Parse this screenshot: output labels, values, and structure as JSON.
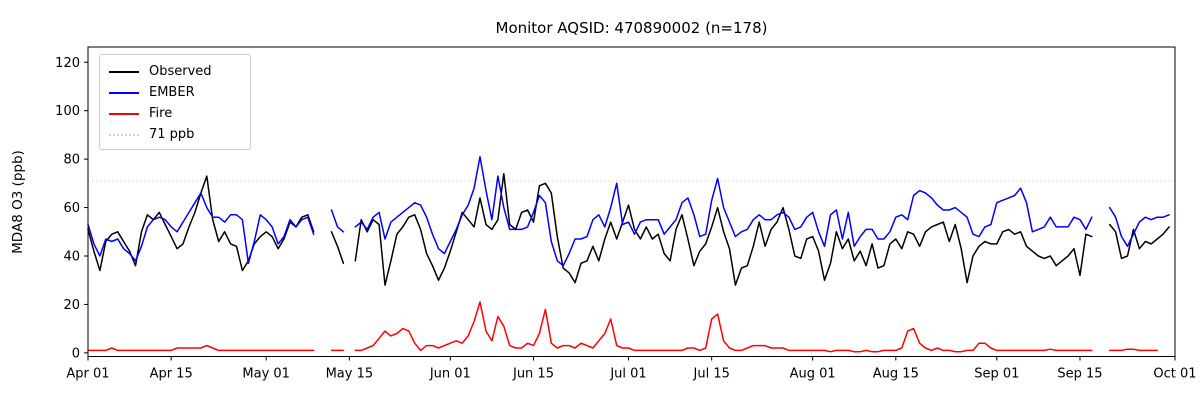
{
  "chart_data": {
    "type": "line",
    "title": "Monitor AQSID: 470890002 (n=178)",
    "xlabel": "",
    "ylabel": "MDA8 O3 (ppb)",
    "x_start_label": "Apr 01",
    "x_end_label": "Oct 01",
    "x_range_days": 183,
    "ylim": [
      -1.5,
      126.3
    ],
    "grid": false,
    "legend_position": "upper-left",
    "y_ticks": [
      0,
      20,
      40,
      60,
      80,
      100,
      120
    ],
    "x_ticks": [
      {
        "label": "Apr 01",
        "day": 0
      },
      {
        "label": "Apr 15",
        "day": 14
      },
      {
        "label": "May 01",
        "day": 30
      },
      {
        "label": "May 15",
        "day": 44
      },
      {
        "label": "Jun 01",
        "day": 61
      },
      {
        "label": "Jun 15",
        "day": 75
      },
      {
        "label": "Jul 01",
        "day": 91
      },
      {
        "label": "Jul 15",
        "day": 105
      },
      {
        "label": "Aug 01",
        "day": 122
      },
      {
        "label": "Aug 15",
        "day": 136
      },
      {
        "label": "Sep 01",
        "day": 153
      },
      {
        "label": "Sep 15",
        "day": 167
      },
      {
        "label": "Oct 01",
        "day": 183
      }
    ],
    "reference_line": {
      "label": "71 ppb",
      "value": 71,
      "color": "#d3d3d3",
      "style": "dotted"
    },
    "series": [
      {
        "name": "Observed",
        "color": "#000000",
        "values": [
          51,
          42,
          34,
          46,
          49,
          50,
          46,
          42,
          36,
          50,
          57,
          55,
          58,
          53,
          48,
          43,
          45,
          52,
          58,
          66,
          73,
          55,
          46,
          50,
          45,
          44,
          34,
          38,
          45,
          48,
          50,
          48,
          43,
          47,
          54,
          52,
          56,
          57,
          50,
          null,
          null,
          50,
          44,
          37,
          null,
          38,
          55,
          50,
          55,
          53,
          28,
          38,
          49,
          52,
          56,
          57,
          51,
          41,
          36,
          30,
          35,
          42,
          50,
          58,
          55,
          52,
          64,
          53,
          51,
          55,
          74,
          53,
          51,
          58,
          59,
          54,
          69,
          70,
          66,
          48,
          35,
          33,
          29,
          37,
          38,
          44,
          38,
          47,
          54,
          47,
          54,
          61,
          51,
          47,
          52,
          47,
          49,
          41,
          38,
          51,
          57,
          47,
          36,
          42,
          45,
          52,
          60,
          50,
          43,
          28,
          35,
          36,
          44,
          54,
          44,
          51,
          54,
          60,
          51,
          40,
          39,
          47,
          48,
          42,
          30,
          37,
          50,
          43,
          47,
          38,
          42,
          36,
          45,
          35,
          36,
          45,
          47,
          43,
          50,
          49,
          44,
          50,
          52,
          53,
          54,
          46,
          53,
          43,
          29,
          40,
          44,
          46,
          45,
          45,
          50,
          51,
          49,
          50,
          44,
          42,
          40,
          39,
          40,
          36,
          38,
          40,
          43,
          32,
          49,
          48,
          null,
          null,
          53,
          50,
          39,
          40,
          51,
          43,
          46,
          45,
          47,
          49,
          52
        ]
      },
      {
        "name": "EMBER",
        "color": "#0000ff",
        "values": [
          53,
          45,
          40,
          47,
          46,
          47,
          43,
          41,
          38,
          44,
          52,
          55,
          56,
          55,
          52,
          50,
          54,
          58,
          62,
          66,
          60,
          56,
          56,
          54,
          57,
          57,
          55,
          37,
          46,
          57,
          55,
          52,
          45,
          48,
          55,
          52,
          55,
          56,
          49,
          null,
          null,
          59,
          52,
          50,
          null,
          52,
          54,
          51,
          56,
          58,
          47,
          54,
          56,
          58,
          60,
          62,
          61,
          56,
          49,
          43,
          41,
          46,
          51,
          57,
          61,
          68,
          81,
          67,
          55,
          73,
          60,
          51,
          51,
          51,
          52,
          58,
          65,
          62,
          46,
          38,
          36,
          41,
          47,
          47,
          48,
          55,
          57,
          52,
          60,
          70,
          53,
          54,
          49,
          54,
          55,
          55,
          55,
          49,
          52,
          55,
          62,
          64,
          57,
          48,
          49,
          63,
          72,
          60,
          54,
          48,
          50,
          51,
          55,
          57,
          55,
          55,
          57,
          58,
          56,
          51,
          52,
          56,
          58,
          50,
          44,
          57,
          59,
          47,
          58,
          44,
          48,
          51,
          51,
          47,
          47,
          50,
          56,
          57,
          55,
          65,
          67,
          66,
          64,
          61,
          59,
          59,
          60,
          58,
          56,
          49,
          48,
          52,
          53,
          62,
          63,
          64,
          65,
          68,
          62,
          50,
          51,
          52,
          56,
          52,
          52,
          52,
          56,
          55,
          51,
          56,
          null,
          null,
          60,
          56,
          48,
          44,
          49,
          54,
          56,
          55,
          56,
          56,
          57
        ]
      },
      {
        "name": "Fire",
        "color": "#ff0000",
        "values": [
          1,
          1,
          1,
          1,
          2,
          1,
          1,
          1,
          1,
          1,
          1,
          1,
          1,
          1,
          1,
          2,
          2,
          2,
          2,
          2,
          3,
          2,
          1,
          1,
          1,
          1,
          1,
          1,
          1,
          1,
          1,
          1,
          1,
          1,
          1,
          1,
          1,
          1,
          1,
          null,
          null,
          1,
          1,
          1,
          null,
          1,
          1,
          2,
          3,
          6,
          9,
          7,
          8,
          10,
          9,
          4,
          1,
          3,
          3,
          2,
          3,
          4,
          5,
          4,
          7,
          13,
          21,
          9,
          5,
          15,
          11,
          3,
          2,
          2,
          4,
          3,
          8,
          18,
          4,
          2,
          3,
          3,
          2,
          4,
          3,
          2,
          5,
          8,
          14,
          3,
          2,
          2,
          1,
          1,
          1,
          1,
          1,
          1,
          1,
          1,
          1,
          2,
          2,
          1,
          2,
          14,
          16,
          5,
          2,
          1,
          1,
          2,
          3,
          3,
          3,
          2,
          2,
          2,
          1,
          1,
          1,
          1,
          1,
          1,
          1,
          0.5,
          1,
          1,
          1,
          0.5,
          0.5,
          1,
          0.5,
          0.5,
          1,
          1,
          1,
          2,
          9,
          10,
          4,
          2,
          1,
          2,
          1,
          1,
          0.5,
          0.5,
          1,
          1,
          4,
          4,
          2,
          1,
          1,
          1,
          1,
          1,
          1,
          1,
          1,
          1,
          1.5,
          1,
          1,
          1,
          1,
          1,
          1,
          1,
          null,
          null,
          1,
          1,
          1,
          1.5,
          1.5,
          1,
          1,
          1,
          1,
          null,
          null
        ]
      }
    ]
  }
}
